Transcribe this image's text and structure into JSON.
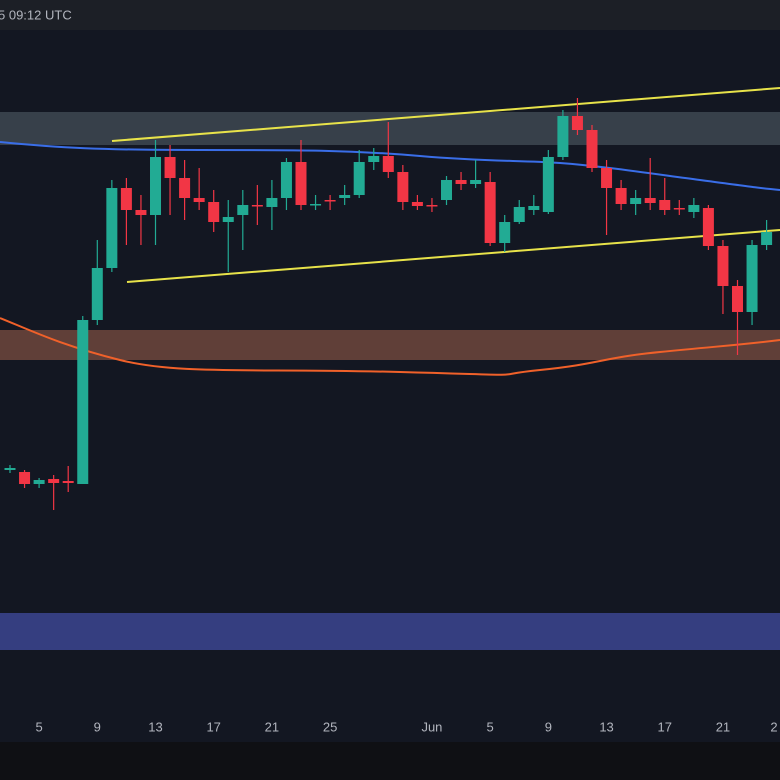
{
  "header_text": "5 09:12 UTC",
  "chart_data": {
    "type": "candlestick",
    "categories": [
      null,
      null,
      "5",
      null,
      null,
      null,
      "9",
      null,
      null,
      null,
      "13",
      null,
      null,
      null,
      "17",
      null,
      null,
      null,
      "21",
      null,
      null,
      null,
      "25",
      null,
      null,
      null,
      null,
      null,
      null,
      "Jun",
      null,
      null,
      null,
      "5",
      null,
      null,
      null,
      "9",
      null,
      null,
      null,
      "13",
      null,
      null,
      null,
      "17",
      null,
      null,
      null,
      "21",
      null,
      null,
      null,
      "2"
    ],
    "open": [
      270,
      268,
      256,
      261,
      259,
      256,
      420,
      472,
      552,
      530,
      525,
      583,
      562,
      542,
      538,
      518,
      525,
      535,
      533,
      542,
      578,
      535,
      540,
      542,
      545,
      578,
      584,
      568,
      538,
      535,
      540,
      560,
      556,
      558,
      497,
      518,
      530,
      528,
      583,
      624,
      610,
      572,
      552,
      536,
      542,
      540,
      532,
      528,
      532,
      494,
      454,
      428,
      495,
      null
    ],
    "high": [
      275,
      270,
      262,
      265,
      274,
      424,
      500,
      560,
      562,
      545,
      600,
      595,
      580,
      572,
      550,
      540,
      550,
      555,
      560,
      582,
      600,
      545,
      545,
      555,
      590,
      592,
      618,
      575,
      545,
      542,
      564,
      568,
      580,
      568,
      525,
      540,
      545,
      590,
      630,
      642,
      615,
      580,
      560,
      550,
      582,
      562,
      540,
      542,
      535,
      500,
      460,
      500,
      520,
      null
    ],
    "low": [
      267,
      252,
      252,
      230,
      248,
      256,
      415,
      468,
      495,
      495,
      495,
      525,
      520,
      530,
      508,
      468,
      490,
      515,
      510,
      530,
      530,
      530,
      530,
      535,
      542,
      570,
      562,
      530,
      530,
      528,
      535,
      550,
      552,
      494,
      488,
      516,
      525,
      526,
      580,
      605,
      568,
      505,
      530,
      525,
      530,
      525,
      525,
      522,
      490,
      426,
      385,
      415,
      490,
      null
    ],
    "close": [
      272,
      256,
      260,
      257,
      257,
      420,
      472,
      552,
      530,
      525,
      583,
      562,
      542,
      538,
      518,
      523,
      535,
      534,
      542,
      578,
      535,
      536,
      539,
      545,
      578,
      584,
      568,
      538,
      534,
      534,
      560,
      556,
      560,
      497,
      518,
      533,
      534,
      583,
      624,
      610,
      572,
      552,
      536,
      542,
      537,
      530,
      531,
      535,
      494,
      454,
      428,
      495,
      508,
      null
    ],
    "up_color": "#22ab94",
    "down_color": "#f23645",
    "ylim": [
      0,
      710
    ]
  }
}
